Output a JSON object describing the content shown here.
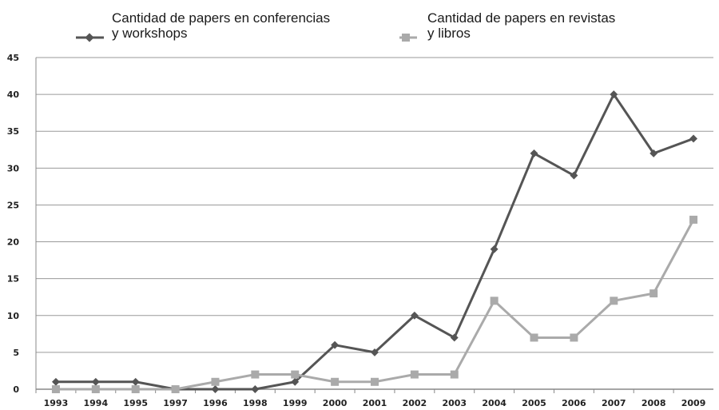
{
  "chart_data": {
    "type": "line",
    "categories": [
      "1993",
      "1994",
      "1995",
      "1997",
      "1996",
      "1998",
      "1999",
      "2000",
      "2001",
      "2002",
      "2003",
      "2004",
      "2005",
      "2006",
      "2007",
      "2008",
      "2009"
    ],
    "series": [
      {
        "name_lines": [
          "Cantidad de papers en conferencias",
          "y workshops"
        ],
        "values": [
          1,
          1,
          1,
          0,
          0,
          0,
          1,
          6,
          5,
          10,
          7,
          19,
          32,
          29,
          40,
          32,
          34
        ],
        "color": "#555555",
        "marker": "diamond"
      },
      {
        "name_lines": [
          "Cantidad de papers en revistas",
          "y libros"
        ],
        "values": [
          0,
          0,
          0,
          0,
          1,
          2,
          2,
          1,
          1,
          2,
          2,
          12,
          7,
          7,
          12,
          13,
          23
        ],
        "color": "#aaaaaa",
        "marker": "square"
      }
    ],
    "ylim": [
      0,
      45
    ],
    "yticks": [
      "0",
      "5",
      "10",
      "15",
      "20",
      "25",
      "30",
      "35",
      "40",
      "45"
    ],
    "grid": true,
    "legend": "top"
  }
}
